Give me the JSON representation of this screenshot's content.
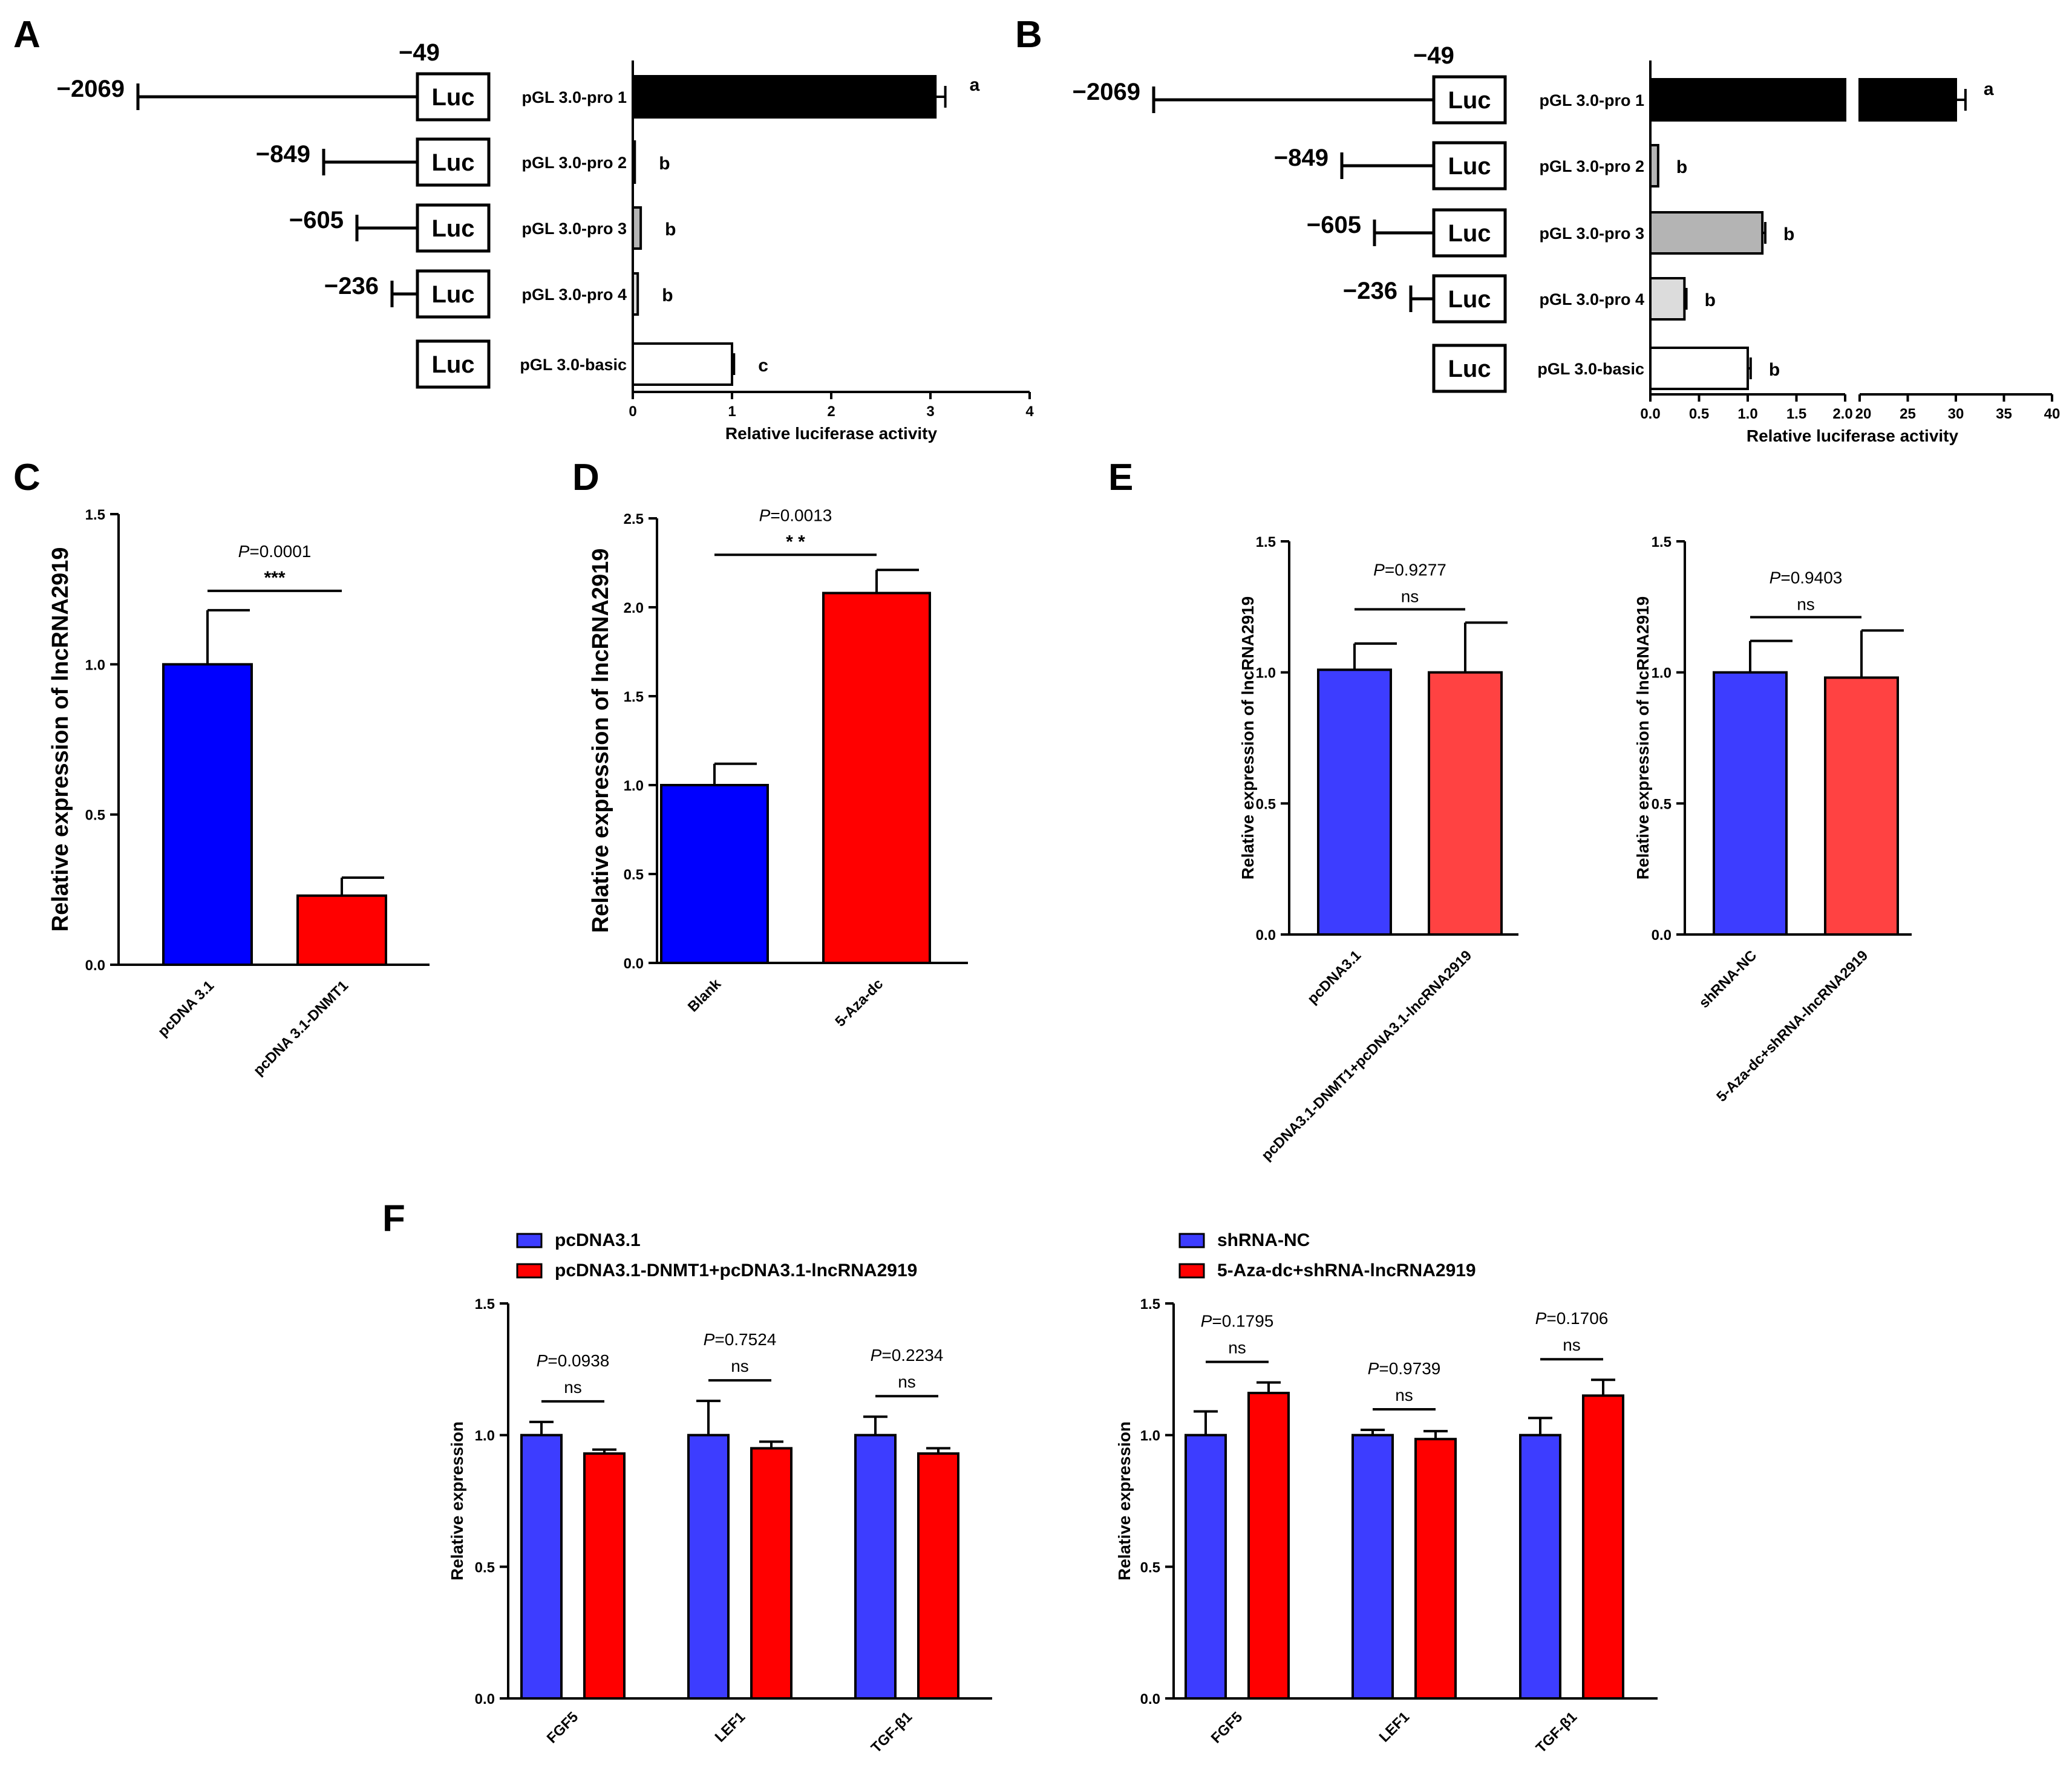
{
  "colors": {
    "blue": "#0000ff",
    "red": "#ff0000",
    "blue_light": "#3d3dff",
    "red_light": "#ff4242",
    "black": "#000000",
    "gray": "#b4b4b4",
    "lightgray": "#dcdcdc",
    "white": "#ffffff"
  },
  "panels": {
    "A": {
      "label": "A",
      "upstream_pos": "−49"
    },
    "B": {
      "label": "B",
      "upstream_pos": "−49"
    },
    "C": {
      "label": "C"
    },
    "D": {
      "label": "D"
    },
    "E": {
      "label": "E"
    },
    "F": {
      "label": "F"
    }
  },
  "constructs": {
    "box_label": "Luc",
    "items": [
      {
        "pos": "−2069",
        "name": "pGL 3.0-pro 1"
      },
      {
        "pos": "−849",
        "name": "pGL 3.0-pro 2"
      },
      {
        "pos": "−605",
        "name": "pGL 3.0-pro 3"
      },
      {
        "pos": "−236",
        "name": "pGL 3.0-pro 4"
      },
      {
        "pos": "",
        "name": "pGL 3.0-basic"
      }
    ]
  },
  "chart_data": [
    {
      "id": "A",
      "type": "bar",
      "orientation": "horizontal",
      "categories": [
        "pGL 3.0-pro 1",
        "pGL 3.0-pro 2",
        "pGL 3.0-pro 3",
        "pGL 3.0-pro 4",
        "pGL 3.0-basic"
      ],
      "values": [
        3.05,
        0.02,
        0.08,
        0.05,
        1.0
      ],
      "errors": [
        0.1,
        0.0,
        0.0,
        0.0,
        0.02
      ],
      "fills": [
        "#000000",
        "#ffffff",
        "#b4b4b4",
        "#dcdcdc",
        "#ffffff"
      ],
      "letters": [
        "a",
        "b",
        "b",
        "b",
        "c"
      ],
      "xlabel": "Relative luciferase activity",
      "xlim": [
        0,
        4
      ],
      "xticks": [
        "0",
        "1",
        "2",
        "3",
        "4"
      ]
    },
    {
      "id": "B",
      "type": "bar",
      "orientation": "horizontal",
      "broken_axis": true,
      "categories": [
        "pGL 3.0-pro 1",
        "pGL 3.0-pro 2",
        "pGL 3.0-pro 3",
        "pGL 3.0-pro 4",
        "pGL 3.0-basic"
      ],
      "values": [
        30.0,
        0.08,
        1.15,
        0.35,
        1.0
      ],
      "errors": [
        1.0,
        0.0,
        0.03,
        0.02,
        0.03
      ],
      "fills": [
        "#000000",
        "#b4b4b4",
        "#b4b4b4",
        "#dcdcdc",
        "#ffffff"
      ],
      "letters": [
        "a",
        "b",
        "b",
        "b",
        "b"
      ],
      "xlabel": "Relative luciferase activity",
      "segment1": {
        "range": [
          0,
          2
        ],
        "ticks": [
          "0.0",
          "0.5",
          "1.0",
          "1.5",
          "2.0"
        ]
      },
      "segment2": {
        "range": [
          20,
          40
        ],
        "ticks": [
          "20",
          "25",
          "30",
          "35",
          "40"
        ]
      }
    },
    {
      "id": "C",
      "type": "bar",
      "categories": [
        "pcDNA 3.1",
        "pcDNA 3.1-DNMT1"
      ],
      "values": [
        1.0,
        0.23
      ],
      "errors": [
        0.18,
        0.06
      ],
      "fills": [
        "#0000ff",
        "#ff0000"
      ],
      "ylabel": "Relative expression of lncRNA2919",
      "ylim": [
        0,
        1.5
      ],
      "yticks": [
        "0.0",
        "0.5",
        "1.0",
        "1.5"
      ],
      "p_prefix": "P",
      "p_value": "=0.0001",
      "sig": "***"
    },
    {
      "id": "D",
      "type": "bar",
      "categories": [
        "Blank",
        "5-Aza-dc"
      ],
      "values": [
        1.0,
        2.08
      ],
      "errors": [
        0.12,
        0.13
      ],
      "fills": [
        "#0000ff",
        "#ff0000"
      ],
      "ylabel": "Relative expression of lncRNA2919",
      "ylim": [
        0,
        2.5
      ],
      "yticks": [
        "0.0",
        "0.5",
        "1.0",
        "1.5",
        "2.0",
        "2.5"
      ],
      "p_prefix": "P",
      "p_value": "=0.0013",
      "sig": "* *"
    },
    {
      "id": "E1",
      "type": "bar",
      "categories": [
        "pcDNA3.1",
        "pcDNA3.1-DNMT1+pcDNA3.1-lncRNA2919"
      ],
      "values": [
        1.01,
        1.0
      ],
      "errors": [
        0.1,
        0.19
      ],
      "fills": [
        "#3d3dff",
        "#ff4242"
      ],
      "ylabel": "Relative expression of lncRNA2919",
      "ylim": [
        0,
        1.5
      ],
      "yticks": [
        "0.0",
        "0.5",
        "1.0",
        "1.5"
      ],
      "p_prefix": "P",
      "p_value": "=0.9277",
      "sig": "ns"
    },
    {
      "id": "E2",
      "type": "bar",
      "categories": [
        "shRNA-NC",
        "5-Aza-dc+shRNA-lncRNA2919"
      ],
      "values": [
        1.0,
        0.98
      ],
      "errors": [
        0.12,
        0.18
      ],
      "fills": [
        "#3d3dff",
        "#ff4242"
      ],
      "ylabel": "Relative expression of lncRNA2919",
      "ylim": [
        0,
        1.5
      ],
      "yticks": [
        "0.0",
        "0.5",
        "1.0",
        "1.5"
      ],
      "p_prefix": "P",
      "p_value": "=0.9403",
      "sig": "ns"
    },
    {
      "id": "F1",
      "type": "bar",
      "categories": [
        "FGF5",
        "LEF1",
        "TGF-β1"
      ],
      "series": [
        {
          "name": "pcDNA3.1",
          "values": [
            1.0,
            1.0,
            1.0
          ],
          "errors": [
            0.05,
            0.13,
            0.07
          ]
        },
        {
          "name": "pcDNA3.1-DNMT1+pcDNA3.1-lncRNA2919",
          "values": [
            0.93,
            0.95,
            0.93
          ],
          "errors": [
            0.015,
            0.025,
            0.02
          ]
        }
      ],
      "fills": [
        "#3d3dff",
        "#ff0000"
      ],
      "ylabel": "Relative expression",
      "ylim": [
        0,
        1.5
      ],
      "yticks": [
        "0.0",
        "0.5",
        "1.0",
        "1.5"
      ],
      "p_prefix": "P",
      "p_values": [
        "=0.0938",
        "=0.7524",
        "=0.2234"
      ],
      "sig": [
        "ns",
        "ns",
        "ns"
      ]
    },
    {
      "id": "F2",
      "type": "bar",
      "categories": [
        "FGF5",
        "LEF1",
        "TGF-β1"
      ],
      "series": [
        {
          "name": "shRNA-NC",
          "values": [
            1.0,
            1.0,
            1.0
          ],
          "errors": [
            0.09,
            0.02,
            0.065
          ]
        },
        {
          "name": "5-Aza-dc+shRNA-lncRNA2919",
          "values": [
            1.16,
            0.985,
            1.15
          ],
          "errors": [
            0.04,
            0.03,
            0.06
          ]
        }
      ],
      "fills": [
        "#3d3dff",
        "#ff0000"
      ],
      "ylabel": "Relative expression",
      "ylim": [
        0,
        1.5
      ],
      "yticks": [
        "0.0",
        "0.5",
        "1.0",
        "1.5"
      ],
      "p_prefix": "P",
      "p_values": [
        "=0.1795",
        "=0.9739",
        "=0.1706"
      ],
      "sig": [
        "ns",
        "ns",
        "ns"
      ]
    }
  ]
}
